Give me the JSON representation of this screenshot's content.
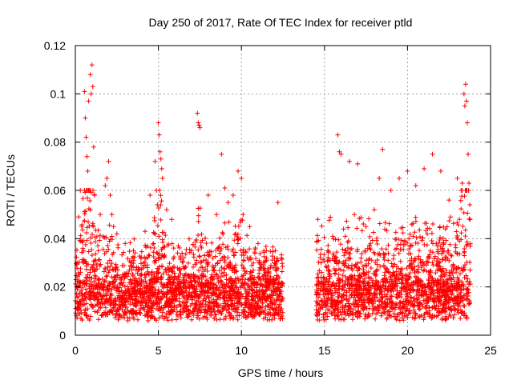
{
  "chart_data": {
    "type": "scatter",
    "title": "Day 250 of 2017, Rate Of TEC Index for receiver ptld",
    "xlabel": "GPS time / hours",
    "ylabel": "ROTI / TECUs",
    "xlim": [
      0,
      25
    ],
    "ylim": [
      0,
      0.12
    ],
    "x_ticks": [
      0,
      5,
      10,
      15,
      20,
      25
    ],
    "x_tick_labels": [
      "0",
      "5",
      "10",
      "15",
      "20",
      "25"
    ],
    "y_ticks": [
      0,
      0.02,
      0.04,
      0.06,
      0.08,
      0.1,
      0.12
    ],
    "y_tick_labels": [
      "0",
      "0.02",
      "0.04",
      "0.06",
      "0.08",
      "0.1",
      "0.12"
    ],
    "grid": true,
    "marker": "plus",
    "color": "#ff0000",
    "data_gap_hours": [
      12.5,
      14.5
    ],
    "series": [
      {
        "x": [
          0.1,
          0.2,
          0.3,
          0.45,
          0.55,
          0.6,
          0.65,
          0.7,
          0.75,
          0.8,
          0.9,
          0.95,
          1.0,
          1.05,
          1.1,
          1.15,
          1.5,
          1.8,
          1.9,
          2.0,
          2.1,
          2.2,
          2.3,
          2.5,
          3.0,
          3.5,
          4.2,
          4.5,
          4.8,
          5.0,
          5.05,
          5.1,
          5.15,
          5.2,
          5.25,
          5.5,
          5.8,
          6.2,
          7.0,
          7.35,
          7.4,
          7.45,
          7.5,
          8.0,
          8.5,
          8.8,
          9.0,
          9.2,
          9.5,
          9.8,
          10.0,
          10.1,
          10.5,
          11.0,
          11.5,
          12.0,
          12.2,
          14.6,
          14.8,
          15.2,
          15.5,
          15.8,
          15.9,
          16.0,
          16.5,
          16.8,
          17.0,
          17.5,
          18.0,
          18.3,
          18.5,
          19.0,
          19.5,
          20.0,
          20.5,
          21.0,
          21.5,
          22.0,
          22.5,
          23.0,
          23.3,
          23.4,
          23.45,
          23.5,
          23.55,
          23.6,
          23.65,
          23.7
        ],
        "y": [
          0.03,
          0.049,
          0.06,
          0.036,
          0.101,
          0.09,
          0.082,
          0.074,
          0.068,
          0.097,
          0.108,
          0.1,
          0.112,
          0.103,
          0.078,
          0.058,
          0.05,
          0.062,
          0.065,
          0.072,
          0.058,
          0.05,
          0.045,
          0.042,
          0.038,
          0.035,
          0.043,
          0.058,
          0.072,
          0.088,
          0.083,
          0.076,
          0.073,
          0.069,
          0.065,
          0.052,
          0.048,
          0.037,
          0.035,
          0.092,
          0.088,
          0.087,
          0.086,
          0.058,
          0.05,
          0.075,
          0.061,
          0.055,
          0.058,
          0.068,
          0.065,
          0.05,
          0.045,
          0.038,
          0.035,
          0.03,
          0.055,
          0.048,
          0.03,
          0.035,
          0.041,
          0.083,
          0.076,
          0.075,
          0.072,
          0.05,
          0.071,
          0.045,
          0.052,
          0.065,
          0.077,
          0.06,
          0.065,
          0.068,
          0.062,
          0.069,
          0.075,
          0.068,
          0.056,
          0.065,
          0.063,
          0.1,
          0.095,
          0.104,
          0.097,
          0.088,
          0.075,
          0.063
        ]
      }
    ]
  }
}
